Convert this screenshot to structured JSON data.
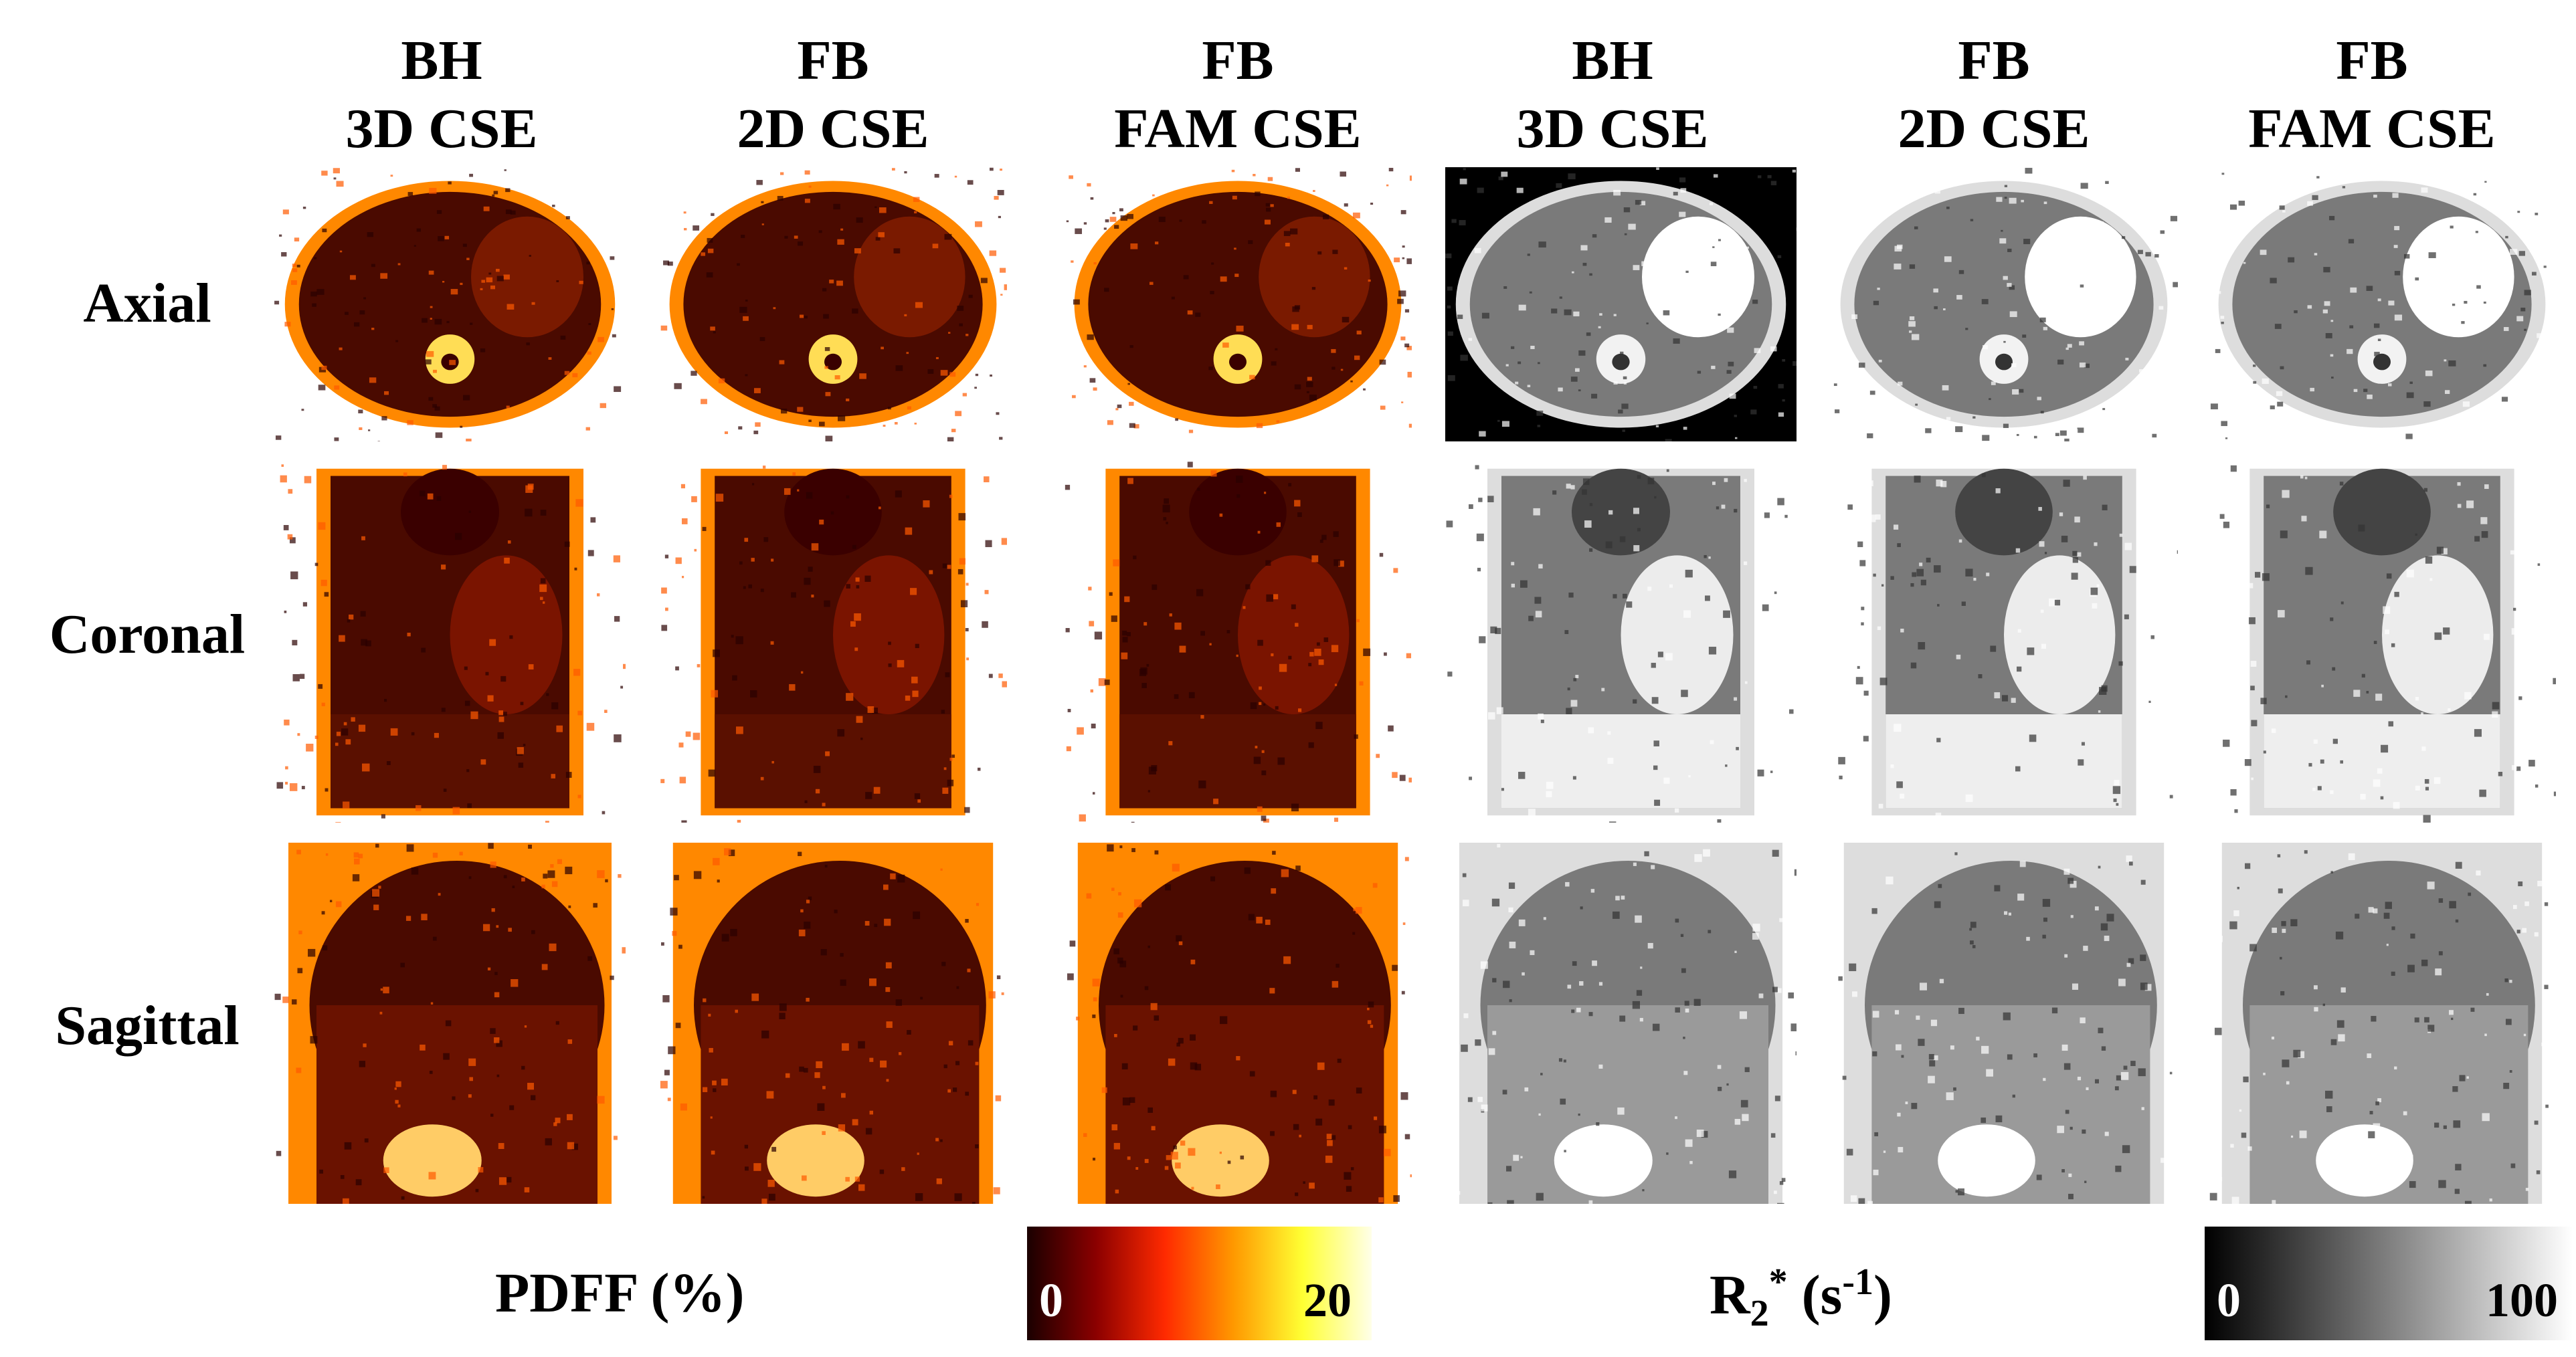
{
  "columns": [
    {
      "line1": "BH",
      "line2": "3D CSE"
    },
    {
      "line1": "FB",
      "line2": "2D CSE"
    },
    {
      "line1": "FB",
      "line2": "FAM CSE"
    },
    {
      "line1": "BH",
      "line2": "3D CSE"
    },
    {
      "line1": "FB",
      "line2": "2D CSE"
    },
    {
      "line1": "FB",
      "line2": "FAM CSE"
    }
  ],
  "rows": [
    "Axial",
    "Coronal",
    "Sagittal"
  ],
  "pdff_colorbar": {
    "label": "PDFF (%)",
    "min": "0",
    "max": "20",
    "colors": [
      "#1a0000",
      "#8b0000",
      "#ff2a00",
      "#ff9900",
      "#ffff33",
      "#ffffe8"
    ]
  },
  "r2_colorbar": {
    "label_main": "R",
    "label_sub": "2",
    "label_sup": "*",
    "label_unit_pre": " (s",
    "label_unit_sup": "-1",
    "label_unit_post": ")",
    "min": "0",
    "max": "100",
    "colors": [
      "#000000",
      "#ffffff"
    ]
  }
}
